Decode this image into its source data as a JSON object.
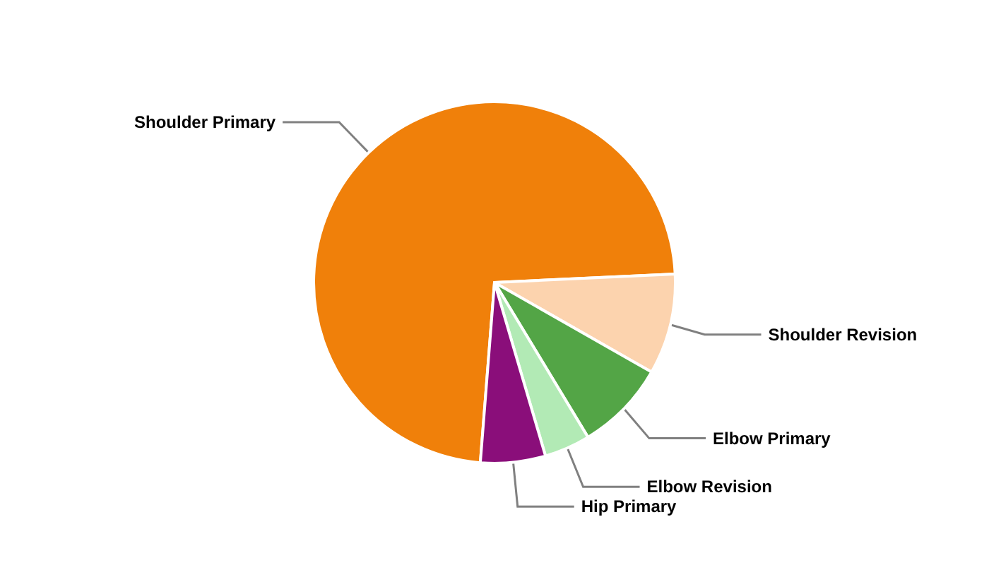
{
  "chart_data": {
    "type": "pie",
    "categories": [
      "Shoulder Primary",
      "Shoulder Revision",
      "Elbow Primary",
      "Elbow Revision",
      "Hip Primary"
    ],
    "values": [
      73.0,
      9.0,
      8.1,
      4.1,
      5.8
    ],
    "colors": [
      "#f0800a",
      "#fcd3ae",
      "#53a546",
      "#b2eab5",
      "#8a0e7a"
    ]
  }
}
